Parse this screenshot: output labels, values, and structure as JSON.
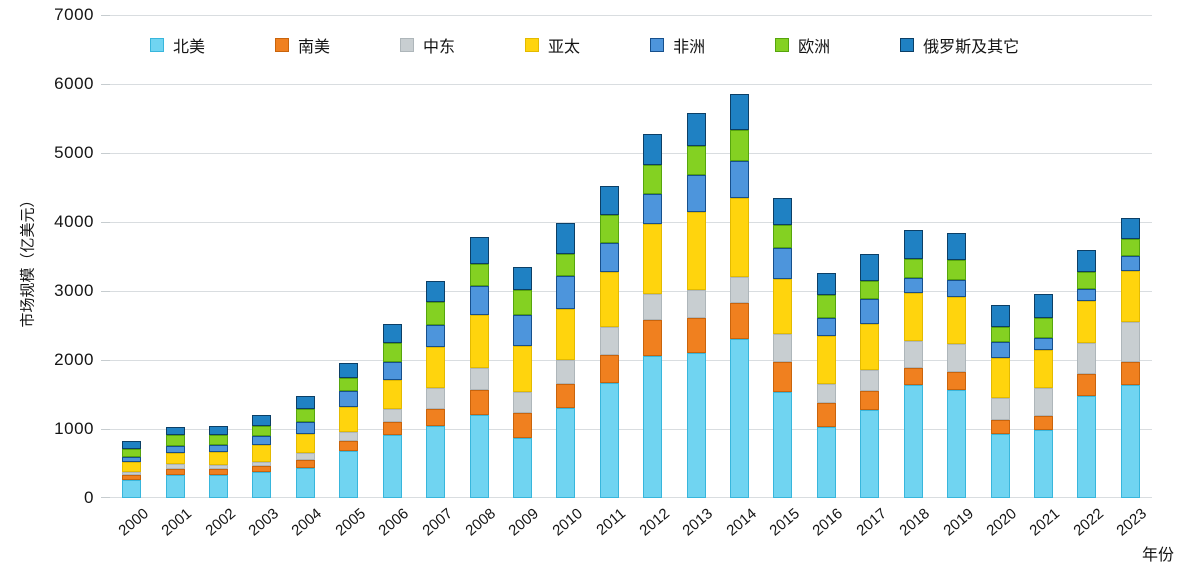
{
  "chart_data": {
    "type": "bar",
    "stacked": true,
    "title": "",
    "xlabel": "年份",
    "ylabel": "市场规模（亿美元）",
    "ylim": [
      0,
      7000
    ],
    "yticks": [
      0,
      1000,
      2000,
      3000,
      4000,
      5000,
      6000,
      7000
    ],
    "grid": "horizontal",
    "legend_position": "top",
    "categories": [
      "2000",
      "2001",
      "2002",
      "2003",
      "2004",
      "2005",
      "2006",
      "2007",
      "2008",
      "2009",
      "2010",
      "2011",
      "2012",
      "2013",
      "2014",
      "2015",
      "2016",
      "2017",
      "2018",
      "2019",
      "2020",
      "2021",
      "2022",
      "2023"
    ],
    "series": [
      {
        "name": "北美",
        "color": "#70D4F1",
        "border": "#38B6DC",
        "values": [
          260,
          335,
          330,
          380,
          440,
          680,
          920,
          1050,
          1210,
          875,
          1300,
          1660,
          2060,
          2100,
          2300,
          1530,
          1030,
          1270,
          1640,
          1565,
          925,
          990,
          1480,
          1635
        ]
      },
      {
        "name": "南美",
        "color": "#F0801F",
        "border": "#C9640C",
        "values": [
          80,
          90,
          85,
          90,
          115,
          145,
          180,
          245,
          360,
          355,
          355,
          415,
          520,
          505,
          530,
          445,
          350,
          285,
          245,
          265,
          210,
          205,
          320,
          335
        ]
      },
      {
        "name": "中东",
        "color": "#C8CED1",
        "border": "#AEB6BA",
        "values": [
          40,
          65,
          65,
          45,
          95,
          130,
          190,
          300,
          310,
          300,
          340,
          405,
          380,
          405,
          380,
          405,
          270,
          305,
          395,
          395,
          310,
          395,
          445,
          580
        ]
      },
      {
        "name": "亚太",
        "color": "#FFD40D",
        "border": "#E3BA00",
        "values": [
          135,
          165,
          185,
          260,
          280,
          360,
          420,
          590,
          780,
          670,
          750,
          800,
          1010,
          1140,
          1140,
          795,
          705,
          665,
          690,
          690,
          585,
          560,
          615,
          740
        ]
      },
      {
        "name": "非洲",
        "color": "#4D95DC",
        "border": "#17508C",
        "values": [
          80,
          100,
          100,
          130,
          170,
          240,
          260,
          330,
          410,
          460,
          470,
          420,
          430,
          530,
          530,
          455,
          255,
          365,
          220,
          245,
          225,
          175,
          175,
          225
        ]
      },
      {
        "name": "欧洲",
        "color": "#84D122",
        "border": "#56A50D",
        "values": [
          110,
          155,
          155,
          145,
          195,
          180,
          280,
          330,
          315,
          350,
          320,
          405,
          425,
          420,
          450,
          320,
          330,
          255,
          280,
          285,
          220,
          285,
          245,
          235
        ]
      },
      {
        "name": "俄罗斯及其它",
        "color": "#1F81C3",
        "border": "#0C3F66",
        "values": [
          115,
          120,
          120,
          150,
          180,
          225,
          270,
          300,
          395,
          340,
          445,
          415,
          445,
          480,
          520,
          400,
          320,
          390,
          410,
          395,
          325,
          350,
          320,
          310
        ]
      }
    ]
  }
}
